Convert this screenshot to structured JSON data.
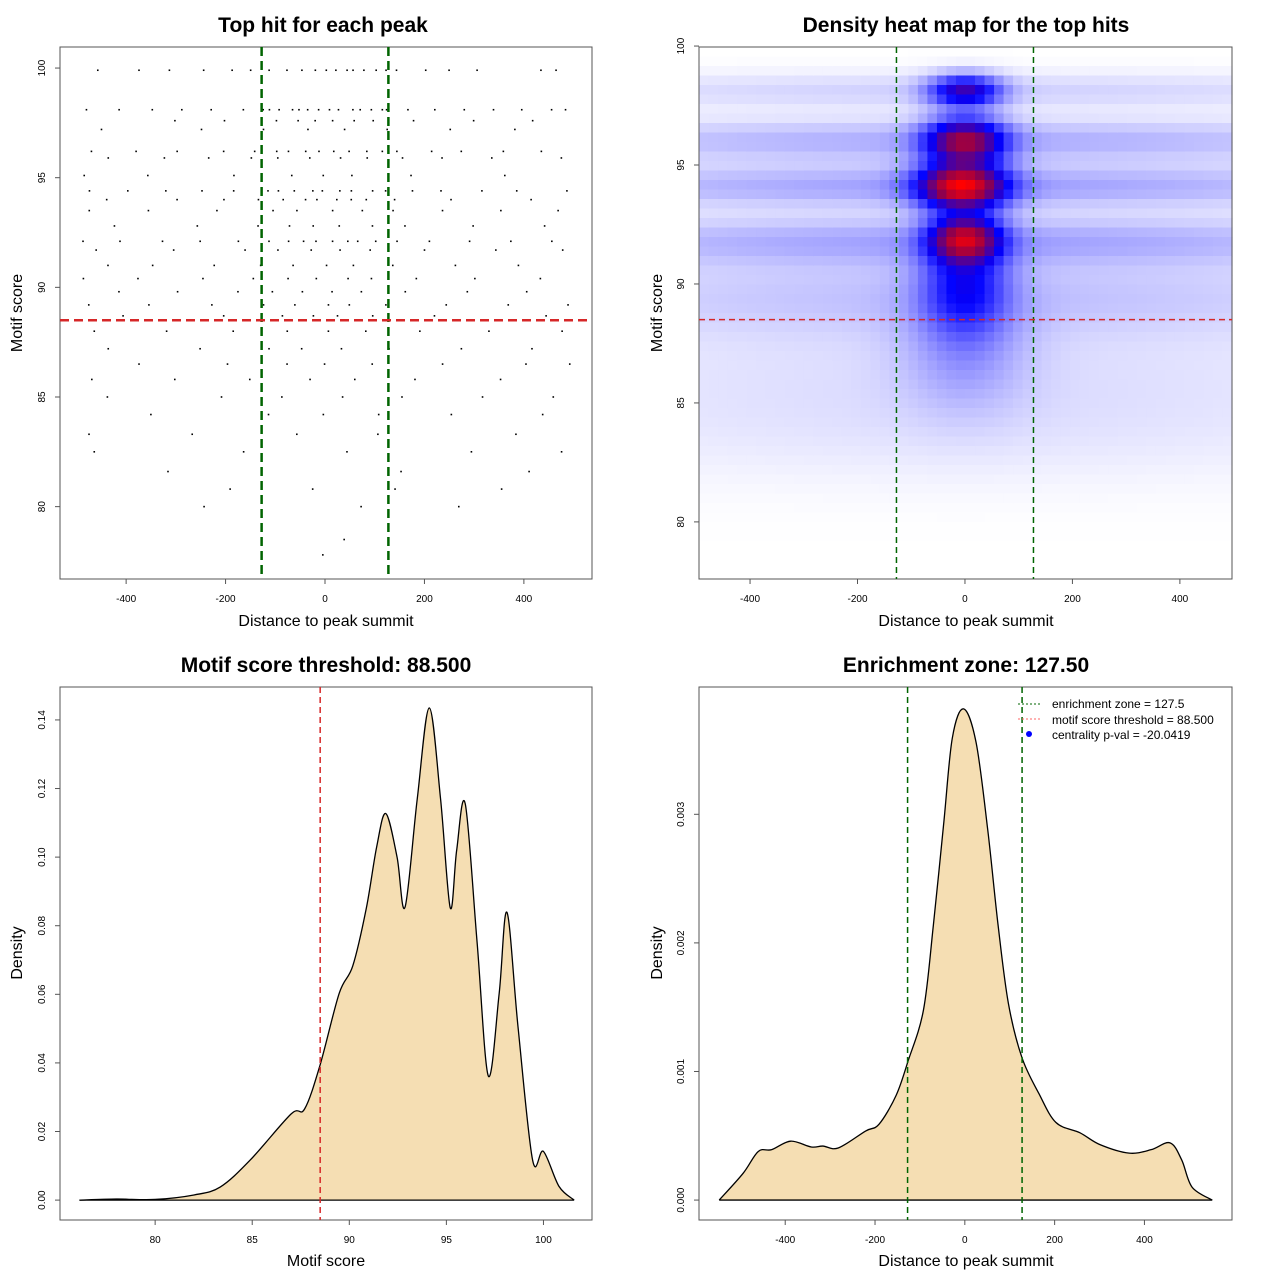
{
  "chart_data": [
    {
      "type": "scatter",
      "title": "Top hit for each peak",
      "xlabel": "Distance to peak summit",
      "ylabel": "Motif score",
      "xlim": [
        -533,
        537
      ],
      "ylim": [
        76.7,
        100.96
      ],
      "xticks": [
        -400,
        -200,
        0,
        200,
        400
      ],
      "yticks": [
        80,
        85,
        90,
        95,
        100
      ],
      "vlines": [
        -127.5,
        127.5
      ],
      "hline": 88.5,
      "colors": {
        "points": "#000000",
        "vlines": "#006400",
        "hline": "#d62728"
      },
      "points_by_score": [
        {
          "score": 99.9,
          "x": [
            -450,
            -380,
            -310,
            -240,
            -190,
            -150,
            -110,
            -80,
            -50,
            -20,
            0,
            20,
            40,
            60,
            80,
            100,
            120,
            150,
            200,
            250,
            300,
            430,
            470
          ]
        },
        {
          "score": 98.1,
          "x": [
            -480,
            -420,
            -350,
            -290,
            -230,
            -170,
            -130,
            -110,
            -90,
            -70,
            -50,
            -30,
            -10,
            10,
            30,
            50,
            70,
            90,
            110,
            130,
            170,
            220,
            280,
            340,
            400,
            450,
            490
          ]
        },
        {
          "score": 97.6,
          "x": [
            -300,
            -200,
            -100,
            -60,
            -20,
            20,
            60,
            100,
            180,
            300,
            420
          ]
        },
        {
          "score": 97.2,
          "x": [
            -450,
            -250,
            -120,
            -40,
            40,
            120,
            250,
            380
          ]
        },
        {
          "score": 96.2,
          "x": [
            -470,
            -380,
            -300,
            -210,
            -140,
            -100,
            -70,
            -40,
            -10,
            20,
            50,
            80,
            110,
            150,
            210,
            280,
            360,
            440
          ]
        },
        {
          "score": 95.9,
          "x": [
            -430,
            -330,
            -230,
            -150,
            -90,
            -30,
            30,
            90,
            150,
            230,
            330,
            470
          ]
        },
        {
          "score": 95.1,
          "x": [
            -490,
            -360,
            -180,
            -60,
            0,
            60,
            180,
            360
          ]
        },
        {
          "score": 94.4,
          "x": [
            -470,
            -400,
            -320,
            -250,
            -180,
            -120,
            -90,
            -60,
            -30,
            0,
            30,
            60,
            90,
            120,
            170,
            240,
            310,
            390,
            480
          ]
        },
        {
          "score": 94.0,
          "x": [
            -440,
            -300,
            -200,
            -130,
            -80,
            -40,
            -10,
            20,
            50,
            80,
            140,
            260,
            420
          ]
        },
        {
          "score": 93.5,
          "x": [
            -480,
            -350,
            -220,
            -110,
            -50,
            10,
            70,
            130,
            230,
            350,
            470
          ]
        },
        {
          "score": 92.8,
          "x": [
            -420,
            -260,
            -140,
            -70,
            -20,
            30,
            90,
            160,
            300,
            440
          ]
        },
        {
          "score": 92.1,
          "x": [
            -490,
            -410,
            -330,
            -250,
            -170,
            -110,
            -80,
            -50,
            -20,
            10,
            40,
            70,
            100,
            150,
            210,
            290,
            370,
            450
          ]
        },
        {
          "score": 91.7,
          "x": [
            -460,
            -300,
            -160,
            -90,
            -30,
            30,
            90,
            200,
            340,
            480
          ]
        },
        {
          "score": 91.0,
          "x": [
            -440,
            -340,
            -220,
            -130,
            -60,
            0,
            60,
            140,
            260,
            390
          ]
        },
        {
          "score": 90.4,
          "x": [
            -480,
            -380,
            -250,
            -150,
            -80,
            -20,
            40,
            100,
            180,
            300,
            430
          ]
        },
        {
          "score": 89.8,
          "x": [
            -420,
            -290,
            -170,
            -100,
            -40,
            20,
            80,
            160,
            280,
            410
          ]
        },
        {
          "score": 89.2,
          "x": [
            -470,
            -350,
            -230,
            -120,
            -60,
            0,
            50,
            120,
            240,
            370,
            490
          ]
        },
        {
          "score": 88.7,
          "x": [
            -400,
            -200,
            -90,
            -30,
            30,
            90,
            220,
            450
          ]
        },
        {
          "score": 88.0,
          "x": [
            -460,
            -320,
            -180,
            -70,
            10,
            80,
            190,
            330,
            470
          ]
        },
        {
          "score": 87.2,
          "x": [
            -430,
            -250,
            -110,
            -40,
            40,
            130,
            280,
            420
          ]
        },
        {
          "score": 86.5,
          "x": [
            -380,
            -200,
            -80,
            0,
            90,
            230,
            400,
            490
          ]
        },
        {
          "score": 85.8,
          "x": [
            -470,
            -300,
            -150,
            -30,
            60,
            180,
            350
          ]
        },
        {
          "score": 85.0,
          "x": [
            -440,
            -210,
            -90,
            30,
            150,
            310,
            460
          ]
        },
        {
          "score": 84.2,
          "x": [
            -350,
            -120,
            -10,
            110,
            260,
            440
          ]
        },
        {
          "score": 83.3,
          "x": [
            -480,
            -270,
            -60,
            100,
            380
          ]
        },
        {
          "score": 82.5,
          "x": [
            -460,
            -160,
            40,
            300,
            470
          ]
        },
        {
          "score": 81.6,
          "x": [
            -320,
            -130,
            150,
            410
          ]
        },
        {
          "score": 80.8,
          "x": [
            -190,
            -30,
            140,
            350
          ]
        },
        {
          "score": 80.0,
          "x": [
            -240,
            70,
            270
          ]
        },
        {
          "score": 78.5,
          "x": [
            40
          ]
        },
        {
          "score": 77.8,
          "x": [
            0
          ]
        }
      ]
    },
    {
      "type": "heatmap",
      "title": "Density heat map for the top hits",
      "xlabel": "Distance to peak summit",
      "ylabel": "Motif score",
      "xlim": [
        -495,
        497
      ],
      "ylim": [
        77.6,
        99.96
      ],
      "xticks": [
        -400,
        -200,
        0,
        200,
        400
      ],
      "yticks": [
        80,
        85,
        90,
        95,
        100
      ],
      "vlines": [
        -127.5,
        127.5
      ],
      "hline": 88.5,
      "colors": {
        "low": "#ffffff",
        "mid": "#0000ff",
        "high_mid": "#8b0050",
        "high": "#ff0000",
        "vlines": "#006400",
        "hline": "#d62728"
      },
      "density_components": [
        {
          "x": 0,
          "y": 98.1,
          "sx": 45,
          "sy": 0.45,
          "w": 0.55
        },
        {
          "x": 0,
          "y": 96.0,
          "sx": 50,
          "sy": 0.65,
          "w": 0.78
        },
        {
          "x": -5,
          "y": 94.1,
          "sx": 55,
          "sy": 0.65,
          "w": 1.0
        },
        {
          "x": 0,
          "y": 91.9,
          "sx": 45,
          "sy": 0.65,
          "w": 0.78
        },
        {
          "x": 0,
          "y": 90.0,
          "sx": 55,
          "sy": 1.4,
          "w": 0.35
        },
        {
          "x": 0,
          "y": 87.3,
          "sx": 80,
          "sy": 1.8,
          "w": 0.12
        },
        {
          "x": 0,
          "y": 98.1,
          "sx": 600,
          "sy": 0.5,
          "w": 0.06
        },
        {
          "x": 0,
          "y": 96.0,
          "sx": 600,
          "sy": 0.6,
          "w": 0.12
        },
        {
          "x": 0,
          "y": 94.1,
          "sx": 600,
          "sy": 0.6,
          "w": 0.14
        },
        {
          "x": 0,
          "y": 91.8,
          "sx": 600,
          "sy": 0.7,
          "w": 0.13
        },
        {
          "x": 0,
          "y": 89.5,
          "sx": 600,
          "sy": 1.2,
          "w": 0.08
        },
        {
          "x": 0,
          "y": 86.0,
          "sx": 600,
          "sy": 2.0,
          "w": 0.04
        },
        {
          "x": 0,
          "y": 83.5,
          "sx": 600,
          "sy": 1.5,
          "w": 0.015
        }
      ]
    },
    {
      "type": "area",
      "title": "Motif score threshold: 88.500",
      "xlabel": "Motif score",
      "ylabel": "Density",
      "xlim": [
        75.1,
        102.5
      ],
      "ylim": [
        -0.0058,
        0.1496
      ],
      "xticks": [
        80,
        85,
        90,
        95,
        100
      ],
      "yticks": [
        "0.00",
        "0.02",
        "0.04",
        "0.06",
        "0.08",
        "0.10",
        "0.12",
        "0.14"
      ],
      "vline": 88.5,
      "colors": {
        "fill": "#f5deb3",
        "line": "#000000",
        "vline": "#d62728"
      },
      "x": [
        76.1,
        78.0,
        80.0,
        82.0,
        83.35,
        84.9,
        87.0,
        87.7,
        88.5,
        89.48,
        90.18,
        90.88,
        91.41,
        91.88,
        92.46,
        92.87,
        93.5,
        94.12,
        94.7,
        95.2,
        95.53,
        95.97,
        96.58,
        97.16,
        97.72,
        98.12,
        98.69,
        99.44,
        100.0,
        100.8,
        101.58
      ],
      "y": [
        0,
        0.0003,
        0.0002,
        0.0015,
        0.0038,
        0.0117,
        0.0251,
        0.0266,
        0.0395,
        0.0603,
        0.0683,
        0.0852,
        0.103,
        0.1127,
        0.1,
        0.0854,
        0.117,
        0.1435,
        0.117,
        0.0852,
        0.102,
        0.1156,
        0.0753,
        0.0362,
        0.0603,
        0.0839,
        0.0505,
        0.0117,
        0.0142,
        0.004,
        0
      ]
    },
    {
      "type": "area",
      "title": "Enrichment zone: 127.50",
      "xlabel": "Distance to peak summit",
      "ylabel": "Density",
      "xlim": [
        -592,
        595
      ],
      "ylim": [
        -0.000155,
        0.00399
      ],
      "xticks": [
        -400,
        -200,
        0,
        200,
        400
      ],
      "yticks": [
        "0.000",
        "0.001",
        "0.002",
        "0.003"
      ],
      "vlines": [
        -127.5,
        127.5
      ],
      "colors": {
        "fill": "#f5deb3",
        "line": "#000000",
        "vlines": "#006400",
        "legend_threshold": "#ff6666",
        "legend_point": "#0000ff"
      },
      "x": [
        -547,
        -494,
        -460,
        -430,
        -388,
        -342,
        -316,
        -282,
        -221,
        -191,
        -153,
        -126.5,
        -92,
        -70,
        -47,
        -28,
        -3,
        25,
        51,
        74,
        97,
        127,
        165,
        203,
        256,
        301,
        366,
        415,
        457,
        483,
        506,
        551
      ],
      "y": [
        0,
        0.000207,
        0.000378,
        0.000392,
        0.000458,
        0.000413,
        0.00042,
        0.000405,
        0.000537,
        0.00059,
        0.000814,
        0.00108,
        0.00148,
        0.00214,
        0.00293,
        0.00359,
        0.00382,
        0.00356,
        0.00288,
        0.00214,
        0.00153,
        0.00111,
        0.000828,
        0.000603,
        0.000524,
        0.000431,
        0.000365,
        0.000392,
        0.000445,
        0.000312,
        0.000101,
        0
      ],
      "legend": {
        "position": "top-right",
        "entries": [
          "enrichment zone = 127.5",
          "motif score threshold = 88.500",
          "centrality p-val = -20.0419"
        ]
      }
    }
  ]
}
